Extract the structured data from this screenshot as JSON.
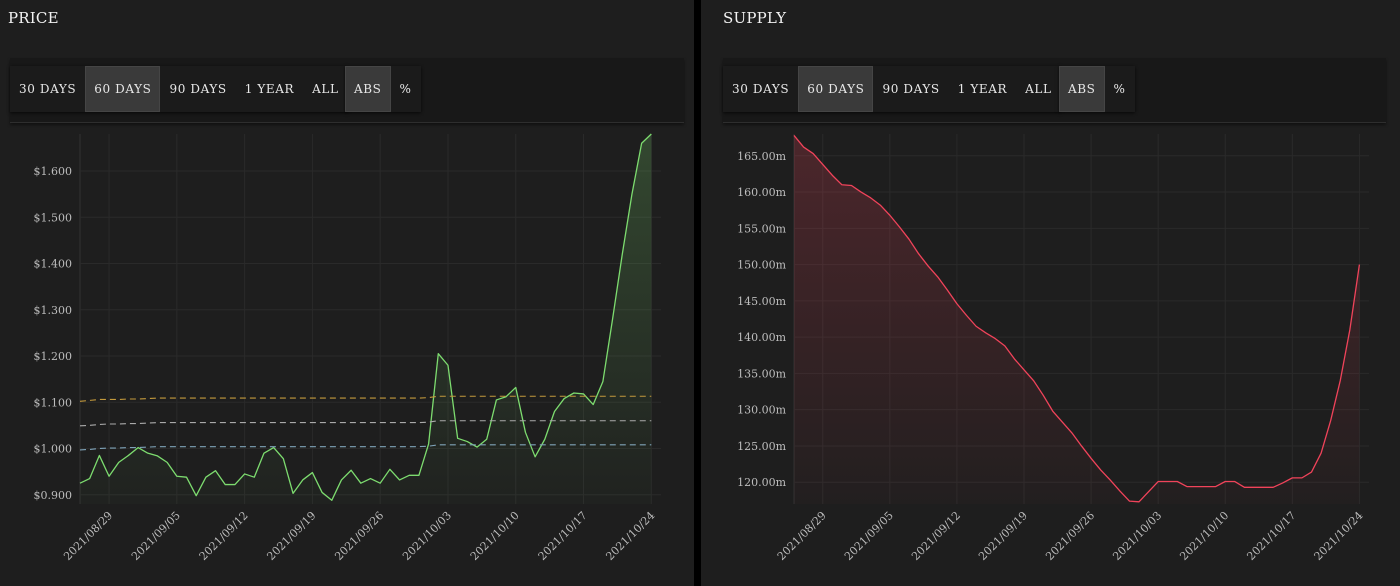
{
  "price_panel": {
    "title": "PRICE",
    "range_buttons": [
      {
        "label": "30 DAYS",
        "active": false
      },
      {
        "label": "60 DAYS",
        "active": true
      },
      {
        "label": "90 DAYS",
        "active": false
      },
      {
        "label": "1 YEAR",
        "active": false
      },
      {
        "label": "ALL",
        "active": false
      }
    ],
    "mode_buttons": [
      {
        "label": "ABS",
        "active": true
      },
      {
        "label": "%",
        "active": false
      }
    ]
  },
  "supply_panel": {
    "title": "SUPPLY",
    "range_buttons": [
      {
        "label": "30 DAYS",
        "active": false
      },
      {
        "label": "60 DAYS",
        "active": true
      },
      {
        "label": "90 DAYS",
        "active": false
      },
      {
        "label": "1 YEAR",
        "active": false
      },
      {
        "label": "ALL",
        "active": false
      }
    ],
    "mode_buttons": [
      {
        "label": "ABS",
        "active": true
      },
      {
        "label": "%",
        "active": false
      }
    ]
  },
  "colors": {
    "price_line": "#7ddc6f",
    "supply_line": "#f0435a",
    "band_upper": "#c49a3c",
    "band_mid": "#aaaaaa",
    "band_lower": "#7fa3b8",
    "grid": "#2a2a2a"
  },
  "chart_data": [
    {
      "type": "line",
      "title": "",
      "start_date": "2021-08-26",
      "x_ticks": [
        "2021/08/29",
        "2021/09/05",
        "2021/09/12",
        "2021/09/19",
        "2021/09/26",
        "2021/10/03",
        "2021/10/10",
        "2021/10/17",
        "2021/10/24"
      ],
      "x_tick_days": [
        3,
        10,
        17,
        24,
        31,
        38,
        45,
        52,
        59
      ],
      "y_ticks": [
        "$0.900",
        "$1.000",
        "$1.100",
        "$1.200",
        "$1.300",
        "$1.400",
        "$1.500",
        "$1.600"
      ],
      "y_tick_values": [
        0.9,
        1.0,
        1.1,
        1.2,
        1.3,
        1.4,
        1.5,
        1.6
      ],
      "ylim": [
        0.88,
        1.68
      ],
      "xlim": [
        0,
        60
      ],
      "grid": true,
      "area_fill": true,
      "series": [
        {
          "name": "price",
          "values": [
            0.925,
            0.935,
            0.985,
            0.94,
            0.97,
            0.985,
            1.002,
            0.99,
            0.984,
            0.97,
            0.94,
            0.938,
            0.898,
            0.938,
            0.952,
            0.922,
            0.922,
            0.945,
            0.938,
            0.99,
            1.002,
            0.978,
            0.903,
            0.932,
            0.948,
            0.905,
            0.888,
            0.932,
            0.953,
            0.925,
            0.935,
            0.925,
            0.955,
            0.932,
            0.942,
            0.942,
            1.01,
            1.205,
            1.18,
            1.022,
            1.015,
            1.003,
            1.02,
            1.105,
            1.112,
            1.132,
            1.035,
            0.982,
            1.02,
            1.08,
            1.108,
            1.12,
            1.118,
            1.095,
            1.145,
            1.28,
            1.42,
            1.55,
            1.66,
            1.68
          ]
        },
        {
          "name": "upper band",
          "values": [
            1.102,
            1.104,
            1.106,
            1.106,
            1.106,
            1.107,
            1.107,
            1.108,
            1.109,
            1.109,
            1.109,
            1.109,
            1.109,
            1.109,
            1.109,
            1.109,
            1.109,
            1.109,
            1.109,
            1.109,
            1.109,
            1.109,
            1.109,
            1.109,
            1.109,
            1.109,
            1.109,
            1.109,
            1.109,
            1.109,
            1.109,
            1.109,
            1.109,
            1.109,
            1.109,
            1.109,
            1.11,
            1.113,
            1.113,
            1.113,
            1.113,
            1.113,
            1.113,
            1.113,
            1.113,
            1.113,
            1.113,
            1.113,
            1.113,
            1.113,
            1.113,
            1.113,
            1.113,
            1.113,
            1.113,
            1.113,
            1.113,
            1.113,
            1.113,
            1.113
          ]
        },
        {
          "name": "middle band",
          "values": [
            1.049,
            1.05,
            1.052,
            1.053,
            1.053,
            1.054,
            1.054,
            1.055,
            1.056,
            1.056,
            1.056,
            1.056,
            1.056,
            1.056,
            1.056,
            1.056,
            1.056,
            1.056,
            1.056,
            1.056,
            1.056,
            1.056,
            1.056,
            1.056,
            1.056,
            1.056,
            1.056,
            1.056,
            1.056,
            1.056,
            1.056,
            1.056,
            1.056,
            1.056,
            1.056,
            1.056,
            1.057,
            1.06,
            1.06,
            1.06,
            1.06,
            1.06,
            1.06,
            1.06,
            1.06,
            1.06,
            1.06,
            1.06,
            1.06,
            1.06,
            1.06,
            1.06,
            1.06,
            1.06,
            1.06,
            1.06,
            1.06,
            1.06,
            1.06,
            1.06
          ]
        },
        {
          "name": "lower band",
          "values": [
            0.997,
            0.998,
            1.0,
            1.001,
            1.001,
            1.002,
            1.002,
            1.003,
            1.004,
            1.004,
            1.004,
            1.004,
            1.004,
            1.004,
            1.004,
            1.004,
            1.004,
            1.004,
            1.004,
            1.004,
            1.004,
            1.004,
            1.004,
            1.004,
            1.004,
            1.004,
            1.004,
            1.004,
            1.004,
            1.004,
            1.004,
            1.004,
            1.004,
            1.004,
            1.004,
            1.004,
            1.005,
            1.008,
            1.008,
            1.008,
            1.008,
            1.008,
            1.008,
            1.008,
            1.008,
            1.008,
            1.008,
            1.008,
            1.008,
            1.008,
            1.008,
            1.008,
            1.008,
            1.008,
            1.008,
            1.008,
            1.008,
            1.008,
            1.008,
            1.008
          ]
        }
      ]
    },
    {
      "type": "line",
      "title": "",
      "start_date": "2021-08-26",
      "x_ticks": [
        "2021/08/29",
        "2021/09/05",
        "2021/09/12",
        "2021/09/19",
        "2021/09/26",
        "2021/10/03",
        "2021/10/10",
        "2021/10/17",
        "2021/10/24"
      ],
      "x_tick_days": [
        3,
        10,
        17,
        24,
        31,
        38,
        45,
        52,
        59
      ],
      "y_ticks": [
        "120.00m",
        "125.00m",
        "130.00m",
        "135.00m",
        "140.00m",
        "145.00m",
        "150.00m",
        "155.00m",
        "160.00m",
        "165.00m"
      ],
      "y_tick_values": [
        120,
        125,
        130,
        135,
        140,
        145,
        150,
        155,
        160,
        165
      ],
      "ylim": [
        117,
        168
      ],
      "xlim": [
        0,
        60
      ],
      "grid": true,
      "area_fill": true,
      "series": [
        {
          "name": "supply",
          "values": [
            167.8,
            166.2,
            165.3,
            163.8,
            162.3,
            161.0,
            160.9,
            160.0,
            159.2,
            158.2,
            156.8,
            155.2,
            153.5,
            151.5,
            149.8,
            148.3,
            146.5,
            144.6,
            143.0,
            141.5,
            140.6,
            139.8,
            138.8,
            137.0,
            135.5,
            134.0,
            132.0,
            129.8,
            128.3,
            126.8,
            125.0,
            123.3,
            121.7,
            120.3,
            118.8,
            117.4,
            117.3,
            118.7,
            120.1,
            120.1,
            120.1,
            119.4,
            119.4,
            119.4,
            119.4,
            120.1,
            120.1,
            119.3,
            119.3,
            119.3,
            119.3,
            119.9,
            120.6,
            120.6,
            121.4,
            124.0,
            128.5,
            134.0,
            141.0,
            150.0
          ]
        }
      ]
    }
  ]
}
